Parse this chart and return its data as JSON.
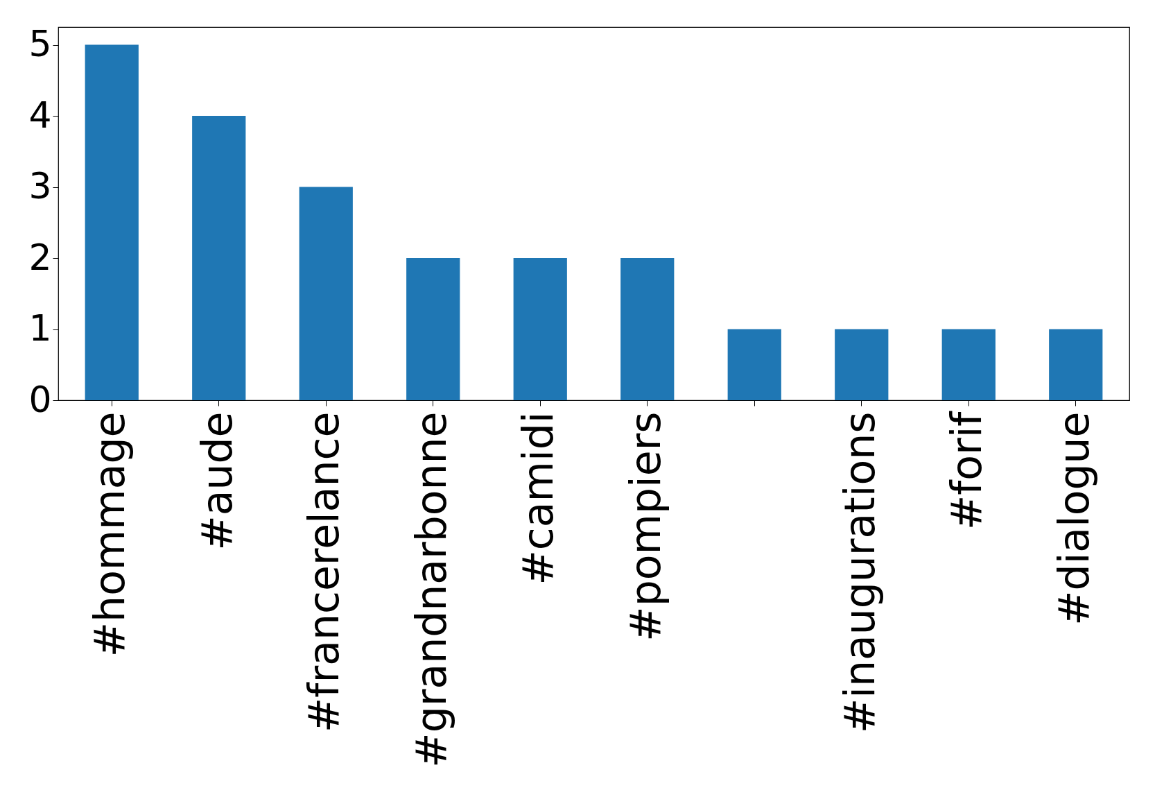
{
  "chart_data": {
    "type": "bar",
    "categories": [
      "#hommage",
      "#aude",
      "#francerelance",
      "#grandnarbonne",
      "#camidi",
      "#pompiers",
      null,
      "#inaugurations",
      "#forif",
      "#dialogue"
    ],
    "values": [
      5,
      4,
      3,
      2,
      2,
      2,
      1,
      1,
      1,
      1
    ],
    "color": "#1f77b4",
    "ylim": [
      0,
      5.25
    ],
    "yticks": [
      0,
      1,
      2,
      3,
      4,
      5
    ],
    "grid": false
  }
}
